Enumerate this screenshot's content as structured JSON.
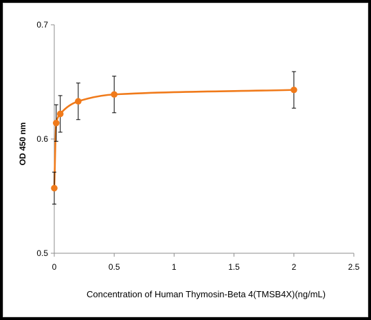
{
  "chart_data": {
    "type": "scatter",
    "title": "",
    "xlabel": "Concentration of Human Thymosin-Beta 4(TMSB4X)(ng/mL)",
    "ylabel": "OD 450 nm",
    "xlim": [
      0,
      2.5
    ],
    "ylim": [
      0.5,
      0.7
    ],
    "x_ticks": [
      "0",
      "0.5",
      "1",
      "1.5",
      "2",
      "2.5"
    ],
    "y_ticks": [
      "0.5",
      "0.6",
      "0.7"
    ],
    "grid": false,
    "legend": "none",
    "series": [
      {
        "color": "#F07A1A",
        "x": [
          0,
          0.016,
          0.05,
          0.2,
          0.5,
          2
        ],
        "y": [
          0.557,
          0.614,
          0.622,
          0.633,
          0.639,
          0.643
        ],
        "error": [
          0.014,
          0.016,
          0.016,
          0.016,
          0.016,
          0.016
        ],
        "fit": "smooth-saturation-curve"
      }
    ]
  }
}
